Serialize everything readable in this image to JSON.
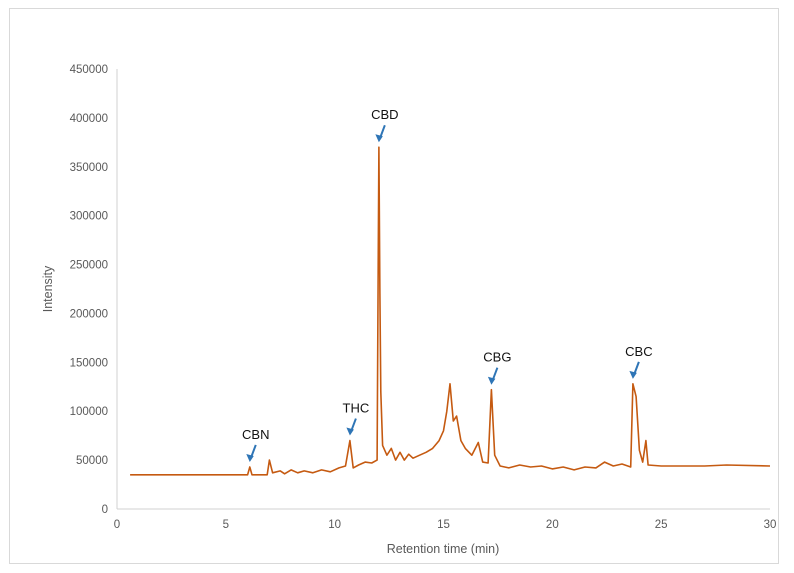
{
  "chart_data": {
    "type": "line",
    "title": "",
    "xlabel": "Retention time (min)",
    "ylabel": "Intensity",
    "xlim": [
      0,
      30
    ],
    "ylim": [
      0,
      450000
    ],
    "x_ticks": [
      0,
      5,
      10,
      15,
      20,
      25,
      30
    ],
    "y_ticks": [
      0,
      50000,
      100000,
      150000,
      200000,
      250000,
      300000,
      350000,
      400000,
      450000
    ],
    "grid": false,
    "legend": null,
    "line_color": "#c55a11",
    "series": [
      {
        "name": "Chromatogram",
        "points": [
          [
            0.6,
            35000
          ],
          [
            6.0,
            35000
          ],
          [
            6.1,
            43000
          ],
          [
            6.2,
            35000
          ],
          [
            6.9,
            35000
          ],
          [
            7.0,
            50000
          ],
          [
            7.15,
            37000
          ],
          [
            7.5,
            39000
          ],
          [
            7.7,
            36000
          ],
          [
            8.0,
            40000
          ],
          [
            8.3,
            37000
          ],
          [
            8.6,
            39000
          ],
          [
            9.0,
            37000
          ],
          [
            9.4,
            40000
          ],
          [
            9.8,
            38000
          ],
          [
            10.2,
            42000
          ],
          [
            10.5,
            44000
          ],
          [
            10.7,
            70000
          ],
          [
            10.85,
            42000
          ],
          [
            11.1,
            45000
          ],
          [
            11.4,
            48000
          ],
          [
            11.7,
            47000
          ],
          [
            11.95,
            50000
          ],
          [
            12.0,
            250000
          ],
          [
            12.03,
            370000
          ],
          [
            12.08,
            220000
          ],
          [
            12.12,
            120000
          ],
          [
            12.2,
            65000
          ],
          [
            12.4,
            55000
          ],
          [
            12.6,
            62000
          ],
          [
            12.8,
            50000
          ],
          [
            13.0,
            58000
          ],
          [
            13.2,
            50000
          ],
          [
            13.4,
            56000
          ],
          [
            13.6,
            52000
          ],
          [
            13.9,
            55000
          ],
          [
            14.2,
            58000
          ],
          [
            14.5,
            62000
          ],
          [
            14.8,
            70000
          ],
          [
            15.0,
            80000
          ],
          [
            15.15,
            100000
          ],
          [
            15.3,
            128000
          ],
          [
            15.45,
            90000
          ],
          [
            15.6,
            95000
          ],
          [
            15.8,
            70000
          ],
          [
            16.0,
            62000
          ],
          [
            16.3,
            55000
          ],
          [
            16.6,
            68000
          ],
          [
            16.8,
            48000
          ],
          [
            17.05,
            47000
          ],
          [
            17.2,
            122000
          ],
          [
            17.35,
            55000
          ],
          [
            17.6,
            44000
          ],
          [
            18.0,
            42000
          ],
          [
            18.5,
            45000
          ],
          [
            19.0,
            43000
          ],
          [
            19.5,
            44000
          ],
          [
            20.0,
            41000
          ],
          [
            20.5,
            43000
          ],
          [
            21.0,
            40000
          ],
          [
            21.5,
            43000
          ],
          [
            22.0,
            42000
          ],
          [
            22.4,
            48000
          ],
          [
            22.8,
            44000
          ],
          [
            23.2,
            46000
          ],
          [
            23.6,
            43000
          ],
          [
            23.7,
            128000
          ],
          [
            23.85,
            115000
          ],
          [
            24.0,
            60000
          ],
          [
            24.15,
            48000
          ],
          [
            24.3,
            70000
          ],
          [
            24.4,
            45000
          ],
          [
            25.0,
            44000
          ],
          [
            27.0,
            44000
          ],
          [
            28.0,
            45000
          ],
          [
            30.0,
            44000
          ]
        ]
      }
    ],
    "annotations": [
      {
        "label": "CBN",
        "x": 6.1,
        "y": 43000
      },
      {
        "label": "THC",
        "x": 10.7,
        "y": 70000
      },
      {
        "label": "CBD",
        "x": 12.03,
        "y": 370000
      },
      {
        "label": "CBG",
        "x": 17.2,
        "y": 122000
      },
      {
        "label": "CBC",
        "x": 23.7,
        "y": 128000
      }
    ],
    "annotation_arrow_color": "#2e75b6"
  }
}
